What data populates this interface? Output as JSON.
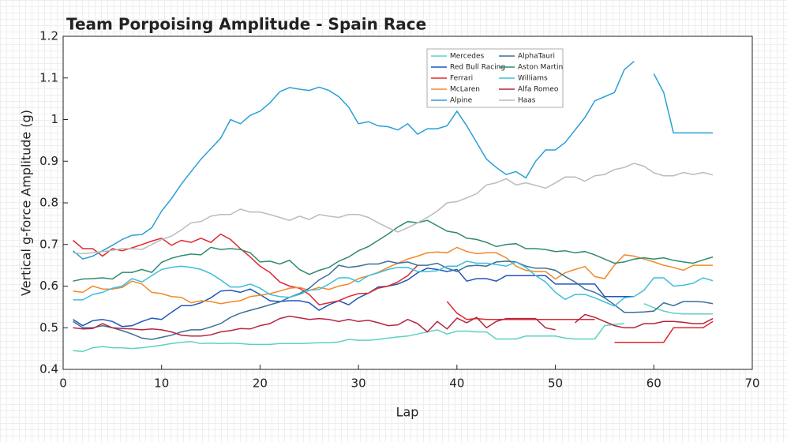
{
  "chart_data": {
    "type": "line",
    "title": "Team Porpoising Amplitude - Spain Race",
    "x_label": "Lap",
    "y_label": "Vertical g-force Amplitude (g)",
    "xlim": [
      0,
      70
    ],
    "xticks": [
      0,
      10,
      20,
      30,
      40,
      50,
      60,
      70
    ],
    "ylim": [
      0.4,
      1.2
    ],
    "yticks": [
      0.4,
      0.5,
      0.6,
      0.7,
      0.8,
      0.9,
      1,
      1.1,
      1.2
    ],
    "x": [
      1,
      2,
      3,
      4,
      5,
      6,
      7,
      8,
      9,
      10,
      11,
      12,
      13,
      14,
      15,
      16,
      17,
      18,
      19,
      20,
      21,
      22,
      23,
      24,
      25,
      26,
      27,
      28,
      29,
      30,
      31,
      32,
      33,
      34,
      35,
      36,
      37,
      38,
      39,
      40,
      41,
      42,
      43,
      44,
      45,
      46,
      47,
      48,
      49,
      50,
      51,
      52,
      53,
      54,
      55,
      56,
      57,
      58,
      59,
      60,
      61,
      62,
      63,
      64,
      65,
      66
    ],
    "series": [
      {
        "name": "Mercedes",
        "color": "#5ed0c3",
        "values": [
          0.445,
          0.443,
          0.452,
          0.455,
          0.452,
          0.452,
          0.45,
          0.452,
          0.455,
          0.458,
          0.462,
          0.465,
          0.467,
          0.462,
          0.463,
          0.462,
          0.463,
          0.462,
          0.46,
          0.46,
          0.46,
          0.462,
          0.462,
          0.462,
          0.463,
          0.464,
          0.464,
          0.466,
          0.472,
          0.47,
          0.47,
          0.472,
          0.475,
          0.478,
          0.48,
          0.485,
          0.49,
          0.495,
          0.485,
          0.492,
          0.492,
          0.49,
          0.49,
          0.473,
          0.473,
          0.473,
          0.48,
          0.48,
          0.48,
          0.48,
          0.475,
          0.473,
          0.473,
          0.473,
          0.505,
          0.508,
          0.51,
          null,
          0.558,
          0.548,
          0.54,
          0.535,
          0.533,
          0.533,
          0.533,
          0.533
        ]
      },
      {
        "name": "Red Bull Racing",
        "color": "#1f56b8",
        "values": [
          0.52,
          0.505,
          0.517,
          0.52,
          0.515,
          0.503,
          0.505,
          0.515,
          0.523,
          0.52,
          0.537,
          0.553,
          0.553,
          0.56,
          0.572,
          0.588,
          0.59,
          0.585,
          0.593,
          0.58,
          0.565,
          0.563,
          0.565,
          0.565,
          0.56,
          0.542,
          0.555,
          0.565,
          0.555,
          0.572,
          0.583,
          0.598,
          0.6,
          0.605,
          0.615,
          0.632,
          0.643,
          0.64,
          0.635,
          0.64,
          0.612,
          0.618,
          0.618,
          0.612,
          0.625,
          0.625,
          0.625,
          0.625,
          0.625,
          0.605,
          0.605,
          0.605,
          0.605,
          0.605,
          0.575,
          0.575,
          0.575,
          0.575,
          null,
          null,
          null,
          null,
          null,
          null,
          null,
          null
        ]
      },
      {
        "name": "Ferrari",
        "color": "#e0282e",
        "values": [
          0.71,
          0.69,
          0.69,
          0.672,
          0.69,
          0.685,
          0.692,
          0.7,
          0.708,
          0.715,
          0.698,
          0.71,
          0.705,
          0.715,
          0.705,
          0.725,
          0.712,
          0.69,
          0.67,
          0.648,
          0.633,
          0.61,
          0.6,
          0.595,
          0.58,
          0.555,
          0.56,
          0.565,
          0.575,
          0.582,
          0.583,
          0.595,
          0.6,
          0.61,
          0.625,
          0.65,
          null,
          null,
          0.563,
          0.535,
          0.52,
          0.522,
          0.52,
          0.52,
          0.52,
          0.52,
          0.52,
          0.52,
          0.52,
          0.52,
          0.52,
          0.52,
          0.52,
          0.52,
          null,
          0.465,
          0.465,
          0.465,
          0.465,
          0.465,
          0.465,
          0.5,
          0.5,
          0.5,
          0.5,
          0.515
        ]
      },
      {
        "name": "McLaren",
        "color": "#f0892a",
        "values": [
          0.588,
          0.585,
          0.6,
          0.593,
          0.593,
          0.597,
          0.612,
          0.605,
          0.585,
          0.582,
          0.575,
          0.573,
          0.56,
          0.565,
          0.563,
          0.558,
          0.562,
          0.565,
          0.575,
          0.578,
          0.582,
          0.588,
          0.595,
          0.597,
          0.59,
          0.597,
          0.592,
          0.6,
          0.605,
          0.618,
          0.625,
          0.633,
          0.645,
          0.655,
          0.665,
          0.672,
          0.68,
          0.682,
          0.68,
          0.693,
          0.683,
          0.678,
          0.68,
          0.68,
          0.668,
          0.648,
          0.638,
          0.635,
          0.635,
          0.617,
          0.632,
          0.64,
          0.647,
          0.623,
          0.618,
          0.65,
          0.675,
          0.672,
          0.665,
          0.658,
          0.65,
          0.645,
          0.638,
          0.65,
          0.65,
          0.65
        ]
      },
      {
        "name": "Alpine",
        "color": "#2a9fd6",
        "values": [
          0.685,
          0.665,
          0.672,
          0.685,
          0.698,
          0.712,
          0.722,
          0.724,
          0.74,
          0.78,
          0.81,
          0.845,
          0.875,
          0.905,
          0.93,
          0.955,
          1.0,
          0.99,
          1.01,
          1.02,
          1.04,
          1.067,
          1.077,
          1.073,
          1.07,
          1.078,
          1.07,
          1.055,
          1.03,
          0.99,
          0.995,
          0.985,
          0.983,
          0.975,
          0.99,
          0.965,
          0.978,
          0.978,
          0.985,
          1.02,
          0.985,
          0.945,
          0.905,
          0.885,
          0.868,
          0.875,
          0.86,
          0.9,
          0.927,
          0.927,
          0.945,
          0.975,
          1.005,
          1.045,
          1.055,
          1.065,
          1.12,
          1.14,
          null,
          1.11,
          1.065,
          0.968,
          0.968,
          0.968,
          0.968,
          0.968
        ]
      },
      {
        "name": "AlphaTauri",
        "color": "#3a6f9a",
        "values": [
          0.515,
          0.5,
          0.5,
          0.505,
          0.5,
          0.493,
          0.485,
          0.475,
          0.472,
          0.477,
          0.482,
          0.49,
          0.495,
          0.495,
          0.502,
          0.51,
          0.525,
          0.535,
          0.542,
          0.548,
          0.555,
          0.562,
          0.573,
          0.582,
          0.595,
          0.615,
          0.628,
          0.65,
          0.645,
          0.648,
          0.653,
          0.653,
          0.66,
          0.655,
          0.658,
          0.65,
          0.65,
          0.655,
          0.643,
          0.635,
          0.648,
          0.65,
          0.648,
          0.658,
          0.66,
          0.658,
          0.648,
          0.643,
          0.643,
          0.638,
          0.623,
          0.61,
          0.593,
          0.585,
          0.572,
          0.555,
          0.537,
          0.537,
          0.538,
          0.54,
          0.56,
          0.553,
          0.563,
          0.563,
          0.562,
          0.558
        ]
      },
      {
        "name": "Aston Martin",
        "color": "#2e8b6e",
        "values": [
          0.612,
          0.617,
          0.618,
          0.62,
          0.617,
          0.633,
          0.633,
          0.64,
          0.633,
          0.657,
          0.667,
          0.673,
          0.677,
          0.675,
          0.693,
          0.688,
          0.69,
          0.688,
          0.68,
          0.658,
          0.66,
          0.653,
          0.662,
          0.64,
          0.628,
          0.638,
          0.645,
          0.66,
          0.67,
          0.685,
          0.695,
          0.71,
          0.725,
          0.742,
          0.755,
          0.752,
          0.758,
          0.745,
          0.732,
          0.728,
          0.715,
          0.712,
          0.705,
          0.695,
          0.7,
          0.702,
          0.69,
          0.69,
          0.688,
          0.683,
          0.685,
          0.68,
          0.683,
          0.675,
          0.665,
          0.655,
          0.658,
          0.665,
          0.668,
          0.665,
          0.668,
          0.662,
          0.658,
          0.655,
          0.663,
          0.67
        ]
      },
      {
        "name": "Williams",
        "color": "#3cbfdc",
        "values": [
          0.567,
          0.567,
          0.58,
          0.585,
          0.595,
          0.6,
          0.618,
          0.61,
          0.625,
          0.64,
          0.645,
          0.648,
          0.645,
          0.64,
          0.63,
          0.615,
          0.598,
          0.598,
          0.605,
          0.595,
          0.58,
          0.575,
          0.573,
          0.58,
          0.59,
          0.592,
          0.605,
          0.62,
          0.62,
          0.61,
          0.625,
          0.632,
          0.64,
          0.645,
          0.645,
          0.635,
          0.635,
          0.637,
          0.648,
          0.648,
          0.66,
          0.655,
          0.655,
          0.652,
          0.648,
          0.658,
          0.645,
          0.625,
          0.61,
          0.585,
          0.568,
          0.58,
          0.58,
          0.572,
          0.562,
          0.552,
          0.572,
          0.575,
          0.59,
          0.62,
          0.62,
          0.6,
          0.602,
          0.607,
          0.62,
          0.613
        ]
      },
      {
        "name": "Alfa Romeo",
        "color": "#b5253f",
        "values": [
          0.5,
          0.497,
          0.498,
          0.51,
          0.5,
          0.498,
          0.497,
          0.495,
          0.497,
          0.495,
          0.49,
          0.482,
          0.48,
          0.48,
          0.483,
          0.49,
          0.493,
          0.498,
          0.497,
          0.505,
          0.51,
          0.522,
          0.528,
          0.524,
          0.52,
          0.522,
          0.52,
          0.515,
          0.52,
          0.515,
          0.518,
          0.512,
          0.505,
          0.507,
          0.52,
          0.51,
          0.49,
          0.515,
          0.497,
          0.523,
          0.512,
          0.525,
          0.5,
          0.515,
          0.522,
          0.522,
          0.522,
          0.522,
          0.5,
          0.495,
          null,
          0.512,
          0.532,
          0.525,
          0.515,
          0.505,
          0.5,
          0.5,
          0.51,
          0.51,
          0.515,
          0.515,
          0.513,
          0.51,
          0.51,
          0.522
        ]
      },
      {
        "name": "Haas",
        "color": "#bbbbbb",
        "values": [
          0.68,
          0.678,
          0.68,
          0.683,
          0.686,
          0.69,
          0.69,
          0.688,
          0.7,
          0.712,
          0.72,
          0.735,
          0.752,
          0.755,
          0.768,
          0.772,
          0.772,
          0.785,
          0.778,
          0.778,
          0.772,
          0.765,
          0.758,
          0.768,
          0.76,
          0.772,
          0.768,
          0.765,
          0.772,
          0.772,
          0.765,
          0.752,
          0.74,
          0.73,
          0.74,
          0.752,
          0.765,
          0.78,
          0.8,
          0.803,
          0.812,
          0.822,
          0.843,
          0.848,
          0.858,
          0.843,
          0.848,
          0.842,
          0.835,
          0.848,
          0.862,
          0.862,
          0.852,
          0.865,
          0.868,
          0.88,
          0.885,
          0.895,
          0.888,
          0.872,
          0.865,
          0.865,
          0.873,
          0.868,
          0.873,
          0.867
        ]
      }
    ]
  }
}
